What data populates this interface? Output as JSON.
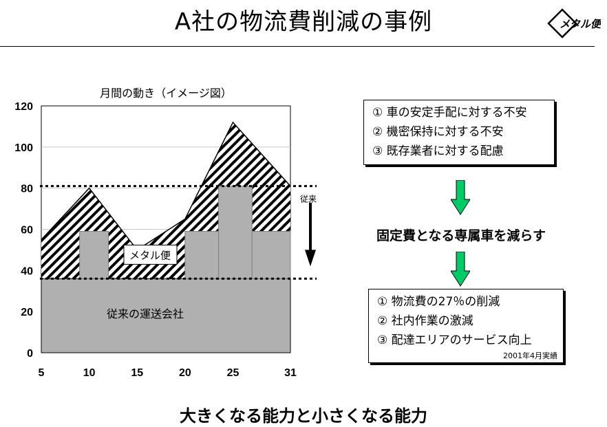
{
  "title": "A社の物流費削減の事例",
  "logo_text": "メタル便",
  "chart_data": {
    "type": "area",
    "title": "月間の動き（イメージ図）",
    "x_ticks": [
      5,
      10,
      15,
      20,
      25,
      31
    ],
    "y_ticks": [
      0,
      20,
      40,
      60,
      80,
      100,
      120
    ],
    "xlim": [
      5,
      31
    ],
    "ylim": [
      0,
      120
    ],
    "demand_x": [
      5,
      10,
      15,
      20,
      25,
      31
    ],
    "demand_y": [
      55,
      80,
      50,
      65,
      112,
      81
    ],
    "base_level": 36,
    "previous_level": 81,
    "bars": [
      {
        "x0": 9,
        "x1": 12,
        "top": 59
      },
      {
        "x0": 20,
        "x1": 23.5,
        "top": 59
      },
      {
        "x0": 23.5,
        "x1": 27,
        "top": 81
      },
      {
        "x0": 27,
        "x1": 31,
        "top": 59
      }
    ],
    "labels": {
      "metal_bin": "メタル便",
      "base": "従来の運送会社",
      "previous": "従来"
    },
    "colors": {
      "bar_fill": "#b0b0b0",
      "hatch": "#000000",
      "grid": "#c8c8c8"
    }
  },
  "box_top": {
    "lines": [
      "① 車の安定手配に対する不安",
      "② 機密保持に対する不安",
      "③ 既存業者に対する配慮"
    ]
  },
  "middle_text": "固定費となる専属車を減らす",
  "box_bottom": {
    "lines": [
      "① 物流費の27％の削減",
      "② 社内作業の激減",
      "③ 配達エリアのサービス向上"
    ],
    "note": "2001年4月実績"
  },
  "footer": "大きくなる能力と小さくなる能力",
  "arrow_color": "#00cc66"
}
